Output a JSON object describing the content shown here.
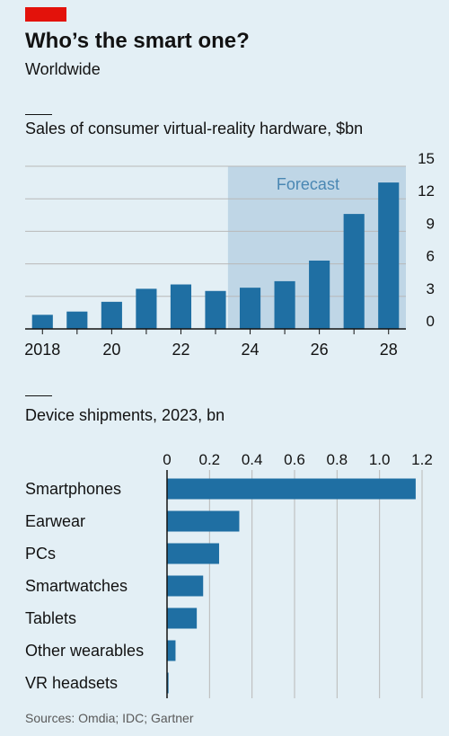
{
  "header": {
    "title": "Who’s the smart one?",
    "subtitle": "Worldwide"
  },
  "colors": {
    "background": "#e3eff5",
    "bar": "#1f6fa3",
    "forecast_shade": "#bfd6e6",
    "forecast_text": "#4a87b3",
    "accent_red": "#e3120b",
    "grid": "#b8b8b8",
    "axis": "#121212"
  },
  "chart_data": [
    {
      "type": "bar",
      "title": "Sales of consumer virtual-reality hardware, $bn",
      "categories": [
        "2018",
        "2019",
        "2020",
        "2021",
        "2022",
        "2023",
        "2024",
        "2025",
        "2026",
        "2027",
        "2028"
      ],
      "x_tick_labels": [
        "2018",
        "20",
        "22",
        "24",
        "26",
        "28"
      ],
      "values": [
        1.3,
        1.6,
        2.5,
        3.7,
        4.1,
        3.5,
        3.8,
        4.4,
        6.3,
        10.6,
        13.5
      ],
      "ylim": [
        0,
        15
      ],
      "y_ticks": [
        0,
        3,
        6,
        9,
        12,
        15
      ],
      "grid": true,
      "forecast_region": {
        "from": "2024",
        "to": "2028",
        "label": "Forecast"
      }
    },
    {
      "type": "bar",
      "orientation": "horizontal",
      "title": "Device shipments, 2023, bn",
      "categories": [
        "Smartphones",
        "Earwear",
        "PCs",
        "Smartwatches",
        "Tablets",
        "Other wearables",
        "VR headsets"
      ],
      "values": [
        1.17,
        0.34,
        0.245,
        0.17,
        0.14,
        0.04,
        0.007
      ],
      "xlim": [
        0,
        1.2
      ],
      "x_ticks": [
        "0",
        "0.2",
        "0.4",
        "0.6",
        "0.8",
        "1.0",
        "1.2"
      ],
      "grid": true
    }
  ],
  "footer": {
    "source": "Sources: Omdia; IDC; Gartner"
  }
}
